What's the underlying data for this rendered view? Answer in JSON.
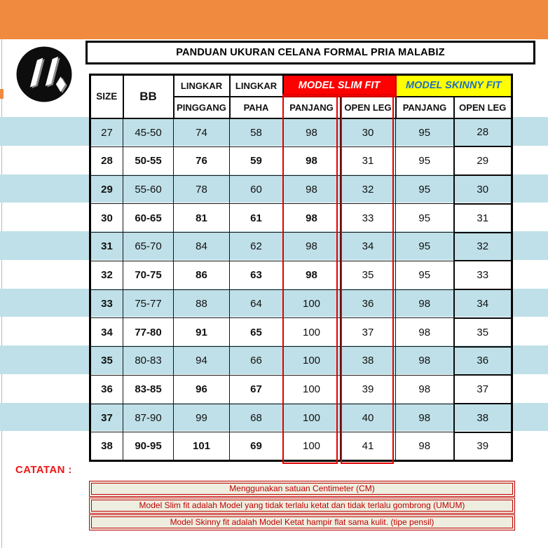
{
  "title": "PANDUAN UKURAN CELANA FORMAL PRIA MALABIZ",
  "brand": {
    "logo_icon": "malabiz-m-logo"
  },
  "table": {
    "header": {
      "size": "SIZE",
      "bb": "BB",
      "lingkar1_top": "LINGKAR",
      "lingkar1_bottom": "PINGGANG",
      "lingkar2_top": "LINGKAR",
      "lingkar2_bottom": "PAHA",
      "slim_group": "MODEL SLIM FIT",
      "skinny_group": "MODEL SKINNY FIT",
      "slim_panjang": "PANJANG",
      "slim_openleg": "OPEN LEG",
      "skinny_panjang": "PANJANG",
      "skinny_openleg": "OPEN LEG"
    },
    "column_keys": [
      "size",
      "bb",
      "lingkar-pinggang",
      "lingkar-paha",
      "slim-panjang",
      "slim-open-leg",
      "skinny-panjang",
      "skinny-open-leg"
    ],
    "rows": [
      {
        "cells": [
          "27",
          "45-50",
          "74",
          "58",
          "98",
          "30",
          "95",
          "28"
        ],
        "bold": []
      },
      {
        "cells": [
          "28",
          "50-55",
          "76",
          "59",
          "98",
          "31",
          "95",
          "29"
        ],
        "bold": [
          0,
          1,
          2,
          3,
          4
        ]
      },
      {
        "cells": [
          "29",
          "55-60",
          "78",
          "60",
          "98",
          "32",
          "95",
          "30"
        ],
        "bold": [
          0
        ]
      },
      {
        "cells": [
          "30",
          "60-65",
          "81",
          "61",
          "98",
          "33",
          "95",
          "31"
        ],
        "bold": [
          0,
          1,
          2,
          3,
          4
        ]
      },
      {
        "cells": [
          "31",
          "65-70",
          "84",
          "62",
          "98",
          "34",
          "95",
          "32"
        ],
        "bold": [
          0
        ]
      },
      {
        "cells": [
          "32",
          "70-75",
          "86",
          "63",
          "98",
          "35",
          "95",
          "33"
        ],
        "bold": [
          0,
          1,
          2,
          3,
          4
        ]
      },
      {
        "cells": [
          "33",
          "75-77",
          "88",
          "64",
          "100",
          "36",
          "98",
          "34"
        ],
        "bold": [
          0
        ]
      },
      {
        "cells": [
          "34",
          "77-80",
          "91",
          "65",
          "100",
          "37",
          "98",
          "35"
        ],
        "bold": [
          0,
          1,
          2,
          3
        ]
      },
      {
        "cells": [
          "35",
          "80-83",
          "94",
          "66",
          "100",
          "38",
          "98",
          "36"
        ],
        "bold": [
          0
        ]
      },
      {
        "cells": [
          "36",
          "83-85",
          "96",
          "67",
          "100",
          "39",
          "98",
          "37"
        ],
        "bold": [
          0,
          1,
          2,
          3
        ]
      },
      {
        "cells": [
          "37",
          "87-90",
          "99",
          "68",
          "100",
          "40",
          "98",
          "38"
        ],
        "bold": [
          0
        ]
      },
      {
        "cells": [
          "38",
          "90-95",
          "101",
          "69",
          "100",
          "41",
          "98",
          "39"
        ],
        "bold": [
          0,
          1,
          2,
          3
        ]
      }
    ]
  },
  "notes": {
    "label": "CATATAN :",
    "items": [
      "Menggunakan satuan Centimeter (CM)",
      "Model Slim fit adalah Model yang tidak terlalu ketat dan tidak terlalu gombrong (UMUM)",
      "Model Skinny fit adalah Model Ketat hampir flat sama kulit. (tipe pensil)"
    ]
  },
  "colors": {
    "orange": "#EF8A3F",
    "stripe": "#BFE0E8",
    "slim_red": "#FD0000",
    "red_line": "#E30000",
    "skinny_yellow": "#FFFF00",
    "skinny_blue": "#1F6FC5",
    "note_red": "#C00000",
    "note_bg": "#EEEEE0",
    "catatan_red": "#EE1515"
  }
}
